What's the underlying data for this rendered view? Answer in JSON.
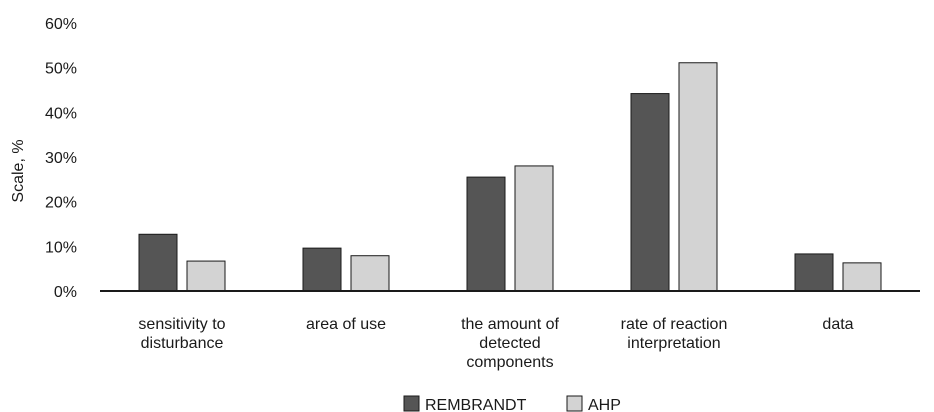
{
  "chart_data": {
    "type": "bar",
    "ylabel": "Scale, %",
    "ylim": [
      0,
      60
    ],
    "yticks": [
      0,
      10,
      20,
      30,
      40,
      50,
      60
    ],
    "ytick_suffix": "%",
    "grid": false,
    "legend_position": "bottom-center",
    "categories": [
      [
        "sensitivity to",
        "disturbance"
      ],
      [
        "area of use"
      ],
      [
        "the amount of",
        "detected",
        "components"
      ],
      [
        "rate of reaction",
        "interpretation"
      ],
      [
        "data"
      ]
    ],
    "series": [
      {
        "name": "REMBRANDT",
        "color": "#555555",
        "values": [
          12.7,
          9.6,
          25.5,
          44.2,
          8.3
        ]
      },
      {
        "name": "AHP",
        "color": "#d3d3d3",
        "values": [
          6.7,
          7.9,
          28.0,
          51.1,
          6.3
        ]
      }
    ]
  }
}
